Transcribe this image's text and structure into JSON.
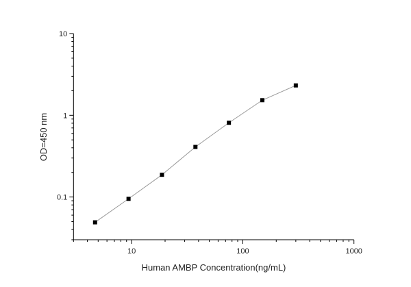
{
  "chart_data": {
    "type": "line",
    "title": "",
    "xlabel": "Human AMBP Concentration(ng/mL)",
    "ylabel": "OD=450 nm",
    "xscale": "log",
    "yscale": "log",
    "xlim": [
      3,
      1000
    ],
    "ylim": [
      0.03,
      10
    ],
    "x_ticks": [
      {
        "value": 10,
        "label": "10"
      },
      {
        "value": 100,
        "label": "100"
      },
      {
        "value": 1000,
        "label": "1000"
      }
    ],
    "y_ticks": [
      {
        "value": 0.1,
        "label": "0.1"
      },
      {
        "value": 1,
        "label": "1"
      },
      {
        "value": 10,
        "label": "10"
      }
    ],
    "grid": false,
    "marker": "square",
    "line_color": "#999999",
    "marker_color": "#000000",
    "series": [
      {
        "x": [
          4.69,
          9.38,
          18.75,
          37.5,
          75,
          150,
          300
        ],
        "y": [
          0.049,
          0.095,
          0.187,
          0.41,
          0.81,
          1.53,
          2.32
        ]
      }
    ]
  }
}
